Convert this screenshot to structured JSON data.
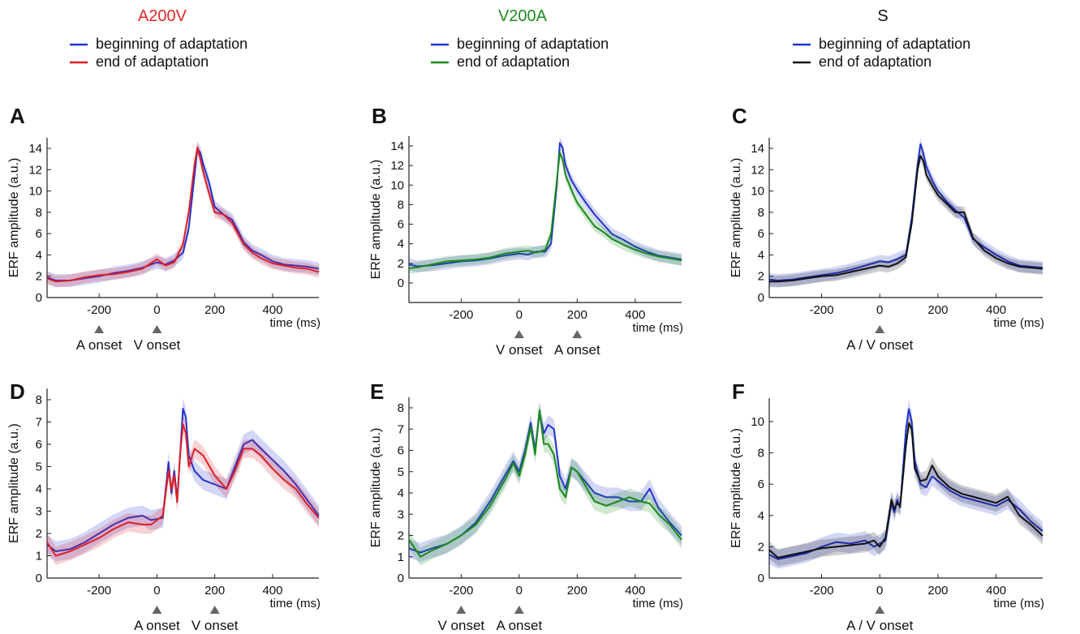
{
  "colors": {
    "beginning": "#2233cc",
    "a200v_end": "#dd1f26",
    "v200a_end": "#1a8a1a",
    "s_end": "#111111",
    "marker": "#666666"
  },
  "columns": [
    {
      "title": "A200V",
      "title_color": "#e4282a",
      "legend": [
        "beginning of adaptation",
        "end of adaptation"
      ]
    },
    {
      "title": "V200A",
      "title_color": "#1f8a1f",
      "legend": [
        "beginning of adaptation",
        "end of adaptation"
      ]
    },
    {
      "title": "S",
      "title_color": "#111111",
      "legend": [
        "beginning of adaptation",
        "end of adaptation"
      ]
    }
  ],
  "chart_data": [
    {
      "panel": "A",
      "type": "line",
      "ylabel": "ERF amplitude (a.u.)",
      "xlabel": "time (ms)",
      "xlim": [
        -380,
        560
      ],
      "ylim": [
        0,
        15
      ],
      "xticks": [
        -200,
        0,
        200,
        400
      ],
      "yticks": [
        0,
        2,
        4,
        6,
        8,
        10,
        12,
        14
      ],
      "onsets": [
        {
          "x": -200,
          "label": "A onset"
        },
        {
          "x": 0,
          "label": "V onset"
        }
      ],
      "series": [
        {
          "name": "beginning of adaptation",
          "color": "#2233cc",
          "x": [
            -380,
            -350,
            -300,
            -250,
            -200,
            -150,
            -100,
            -50,
            0,
            30,
            60,
            90,
            110,
            130,
            140,
            150,
            160,
            180,
            200,
            230,
            260,
            280,
            300,
            330,
            360,
            400,
            440,
            480,
            520,
            560
          ],
          "y": [
            1.9,
            1.6,
            1.6,
            1.8,
            2.0,
            2.3,
            2.5,
            2.8,
            3.3,
            3.1,
            3.5,
            4.2,
            6.5,
            11.5,
            14.0,
            13.6,
            12.5,
            10.8,
            8.5,
            7.8,
            7.3,
            6.3,
            5.2,
            4.4,
            4.0,
            3.4,
            3.1,
            3.0,
            2.9,
            2.7
          ]
        },
        {
          "name": "end of adaptation",
          "color": "#dd1f26",
          "x": [
            -380,
            -350,
            -300,
            -250,
            -200,
            -150,
            -100,
            -50,
            0,
            30,
            60,
            90,
            110,
            130,
            140,
            150,
            160,
            180,
            200,
            230,
            260,
            280,
            300,
            330,
            360,
            400,
            440,
            480,
            520,
            560
          ],
          "y": [
            1.8,
            1.5,
            1.6,
            1.9,
            2.1,
            2.2,
            2.4,
            2.7,
            3.6,
            3.0,
            3.3,
            5.0,
            8.0,
            12.5,
            14.1,
            13.0,
            11.8,
            9.8,
            8.0,
            7.8,
            7.0,
            6.0,
            5.0,
            4.2,
            3.7,
            3.2,
            3.0,
            2.8,
            2.7,
            2.4
          ]
        }
      ]
    },
    {
      "panel": "B",
      "type": "line",
      "ylabel": "ERF amplitude (a.u.)",
      "xlabel": "time (ms)",
      "xlim": [
        -380,
        560
      ],
      "ylim": [
        -2,
        15
      ],
      "xticks": [
        -200,
        0,
        200,
        400
      ],
      "yticks": [
        0,
        2,
        4,
        6,
        8,
        10,
        12,
        14
      ],
      "onsets": [
        {
          "x": 0,
          "label": "V onset"
        },
        {
          "x": 200,
          "label": "A onset"
        }
      ],
      "series": [
        {
          "name": "beginning of adaptation",
          "color": "#2233cc",
          "x": [
            -380,
            -350,
            -300,
            -250,
            -200,
            -150,
            -100,
            -50,
            0,
            30,
            60,
            90,
            110,
            130,
            140,
            150,
            160,
            180,
            200,
            230,
            260,
            290,
            320,
            360,
            400,
            440,
            480,
            520,
            560
          ],
          "y": [
            1.9,
            1.7,
            1.8,
            2.0,
            2.2,
            2.3,
            2.5,
            2.8,
            3.0,
            2.9,
            3.2,
            3.2,
            4.0,
            10.0,
            14.3,
            13.8,
            12.0,
            10.5,
            9.5,
            8.2,
            7.0,
            6.0,
            5.0,
            4.4,
            3.7,
            3.2,
            2.8,
            2.6,
            2.4
          ]
        },
        {
          "name": "end of adaptation",
          "color": "#1a8a1a",
          "x": [
            -380,
            -350,
            -300,
            -250,
            -200,
            -150,
            -100,
            -50,
            0,
            30,
            60,
            90,
            110,
            130,
            140,
            150,
            160,
            180,
            200,
            230,
            260,
            290,
            320,
            360,
            400,
            440,
            480,
            520,
            560
          ],
          "y": [
            1.5,
            1.6,
            1.9,
            2.2,
            2.3,
            2.4,
            2.6,
            3.0,
            3.2,
            3.3,
            3.1,
            3.4,
            5.0,
            10.5,
            13.3,
            12.6,
            11.0,
            9.5,
            8.2,
            7.0,
            5.8,
            5.2,
            4.5,
            3.9,
            3.4,
            3.0,
            2.7,
            2.5,
            2.3
          ]
        }
      ]
    },
    {
      "panel": "C",
      "type": "line",
      "ylabel": "ERF amplitude (a.u.)",
      "xlabel": "time (ms)",
      "xlim": [
        -380,
        560
      ],
      "ylim": [
        0,
        15
      ],
      "xticks": [
        -200,
        0,
        200,
        400
      ],
      "yticks": [
        0,
        2,
        4,
        6,
        8,
        10,
        12,
        14
      ],
      "onsets": [
        {
          "x": 0,
          "label": "A / V onset"
        }
      ],
      "series": [
        {
          "name": "beginning of adaptation",
          "color": "#2233cc",
          "x": [
            -380,
            -350,
            -300,
            -250,
            -200,
            -150,
            -100,
            -50,
            0,
            30,
            60,
            90,
            110,
            130,
            140,
            150,
            160,
            180,
            200,
            230,
            260,
            290,
            320,
            360,
            400,
            440,
            480,
            520,
            560
          ],
          "y": [
            1.7,
            1.6,
            1.7,
            1.9,
            2.1,
            2.3,
            2.6,
            3.0,
            3.4,
            3.3,
            3.6,
            4.0,
            7.5,
            12.5,
            14.4,
            13.5,
            12.3,
            11.0,
            10.0,
            9.0,
            8.2,
            7.5,
            5.5,
            4.7,
            4.0,
            3.4,
            3.0,
            2.9,
            2.8
          ]
        },
        {
          "name": "end of adaptation",
          "color": "#111111",
          "x": [
            -380,
            -350,
            -300,
            -250,
            -200,
            -150,
            -100,
            -50,
            0,
            30,
            60,
            90,
            110,
            130,
            140,
            150,
            160,
            180,
            200,
            230,
            260,
            290,
            320,
            360,
            400,
            440,
            480,
            520,
            560
          ],
          "y": [
            1.5,
            1.5,
            1.6,
            1.8,
            2.0,
            2.1,
            2.4,
            2.7,
            3.0,
            2.9,
            3.2,
            3.8,
            7.0,
            12.0,
            13.3,
            12.8,
            11.5,
            10.5,
            9.6,
            8.8,
            8.0,
            8.0,
            5.6,
            4.4,
            3.7,
            3.2,
            2.9,
            2.8,
            2.7
          ]
        }
      ]
    },
    {
      "panel": "D",
      "type": "line",
      "ylabel": "ERF amplitude (a.u.)",
      "xlabel": "time (ms)",
      "xlim": [
        -380,
        560
      ],
      "ylim": [
        0,
        8.5
      ],
      "xticks": [
        -200,
        0,
        200,
        400
      ],
      "yticks": [
        0,
        1,
        2,
        3,
        4,
        5,
        6,
        7,
        8
      ],
      "onsets": [
        {
          "x": 0,
          "label": "A onset"
        },
        {
          "x": 200,
          "label": "V onset"
        }
      ],
      "series": [
        {
          "name": "beginning of adaptation",
          "color": "#2233cc",
          "x": [
            -380,
            -350,
            -300,
            -250,
            -200,
            -150,
            -100,
            -50,
            -20,
            20,
            40,
            50,
            60,
            70,
            80,
            90,
            100,
            110,
            130,
            160,
            200,
            240,
            270,
            300,
            330,
            360,
            400,
            440,
            480,
            520,
            560
          ],
          "y": [
            1.5,
            1.2,
            1.3,
            1.6,
            2.0,
            2.4,
            2.7,
            2.8,
            2.6,
            2.7,
            5.2,
            3.8,
            4.8,
            3.5,
            5.5,
            7.6,
            7.2,
            5.5,
            4.8,
            4.4,
            4.2,
            4.0,
            5.0,
            6.0,
            6.2,
            5.8,
            5.3,
            4.8,
            4.2,
            3.5,
            2.8
          ]
        },
        {
          "name": "end of adaptation",
          "color": "#dd1f26",
          "x": [
            -380,
            -350,
            -300,
            -250,
            -200,
            -150,
            -100,
            -50,
            -20,
            20,
            40,
            50,
            60,
            70,
            80,
            90,
            100,
            110,
            130,
            160,
            200,
            240,
            270,
            300,
            330,
            360,
            400,
            440,
            480,
            520,
            560
          ],
          "y": [
            1.6,
            1.0,
            1.2,
            1.5,
            1.8,
            2.2,
            2.5,
            2.4,
            2.4,
            2.8,
            4.8,
            4.0,
            4.6,
            3.4,
            5.5,
            6.9,
            6.5,
            5.0,
            5.8,
            5.5,
            4.6,
            4.0,
            4.8,
            5.8,
            5.8,
            5.5,
            4.9,
            4.4,
            4.0,
            3.3,
            2.7
          ]
        }
      ]
    },
    {
      "panel": "E",
      "type": "line",
      "ylabel": "ERF amplitude (a.u.)",
      "xlabel": "time (ms)",
      "xlim": [
        -380,
        560
      ],
      "ylim": [
        0,
        8.5
      ],
      "xticks": [
        -200,
        0,
        200,
        400
      ],
      "yticks": [
        0,
        1,
        2,
        3,
        4,
        5,
        6,
        7,
        8
      ],
      "onsets": [
        {
          "x": -200,
          "label": "V onset"
        },
        {
          "x": 0,
          "label": "A onset"
        }
      ],
      "series": [
        {
          "name": "beginning of adaptation",
          "color": "#2233cc",
          "x": [
            -380,
            -340,
            -300,
            -250,
            -200,
            -150,
            -100,
            -50,
            -20,
            0,
            20,
            40,
            55,
            70,
            85,
            100,
            120,
            140,
            160,
            180,
            200,
            230,
            260,
            300,
            340,
            380,
            420,
            450,
            480,
            520,
            560
          ],
          "y": [
            1.4,
            1.2,
            1.4,
            1.6,
            2.0,
            2.6,
            3.6,
            4.8,
            5.5,
            5.0,
            6.0,
            7.3,
            6.0,
            7.8,
            6.8,
            7.2,
            7.0,
            4.8,
            4.2,
            5.2,
            5.0,
            4.5,
            4.0,
            3.8,
            3.8,
            3.6,
            3.6,
            4.2,
            3.3,
            2.6,
            2.0
          ]
        },
        {
          "name": "end of adaptation",
          "color": "#1a8a1a",
          "x": [
            -380,
            -340,
            -300,
            -250,
            -200,
            -150,
            -100,
            -50,
            -20,
            0,
            20,
            40,
            55,
            70,
            85,
            100,
            120,
            140,
            160,
            180,
            200,
            230,
            260,
            300,
            340,
            380,
            420,
            450,
            480,
            520,
            560
          ],
          "y": [
            1.8,
            1.0,
            1.3,
            1.6,
            2.0,
            2.5,
            3.4,
            4.6,
            5.4,
            4.8,
            5.8,
            7.1,
            5.8,
            7.9,
            6.3,
            6.3,
            5.8,
            4.2,
            3.8,
            5.2,
            5.0,
            4.3,
            3.6,
            3.4,
            3.6,
            3.8,
            3.6,
            3.5,
            3.0,
            2.5,
            1.8
          ]
        }
      ]
    },
    {
      "panel": "F",
      "type": "line",
      "ylabel": "ERF amplitude (a.u.)",
      "xlabel": "time (ms)",
      "xlim": [
        -380,
        560
      ],
      "ylim": [
        0,
        11.5
      ],
      "xticks": [
        -200,
        0,
        200,
        400
      ],
      "yticks": [
        0,
        2,
        4,
        6,
        8,
        10
      ],
      "onsets": [
        {
          "x": 0,
          "label": "A / V onset"
        }
      ],
      "series": [
        {
          "name": "beginning of adaptation",
          "color": "#2233cc",
          "x": [
            -380,
            -350,
            -300,
            -250,
            -200,
            -150,
            -100,
            -50,
            -20,
            0,
            20,
            40,
            50,
            60,
            70,
            80,
            90,
            100,
            110,
            120,
            140,
            160,
            180,
            200,
            240,
            280,
            320,
            360,
            400,
            440,
            480,
            520,
            560
          ],
          "y": [
            1.5,
            1.2,
            1.4,
            1.6,
            2.0,
            2.3,
            2.2,
            2.4,
            2.0,
            2.2,
            2.4,
            4.8,
            4.2,
            5.0,
            4.5,
            7.0,
            9.5,
            10.8,
            10.0,
            7.5,
            6.0,
            5.8,
            6.5,
            6.2,
            5.6,
            5.2,
            5.0,
            4.8,
            4.6,
            5.0,
            4.4,
            3.6,
            3.0
          ]
        },
        {
          "name": "end of adaptation",
          "color": "#111111",
          "x": [
            -380,
            -350,
            -300,
            -250,
            -200,
            -150,
            -100,
            -50,
            -20,
            0,
            20,
            40,
            50,
            60,
            70,
            80,
            90,
            100,
            110,
            120,
            140,
            160,
            180,
            200,
            240,
            280,
            320,
            360,
            400,
            440,
            480,
            520,
            560
          ],
          "y": [
            1.8,
            1.3,
            1.5,
            1.7,
            1.9,
            2.0,
            2.1,
            2.2,
            2.4,
            2.0,
            2.6,
            5.0,
            4.4,
            4.8,
            4.6,
            6.5,
            8.5,
            9.9,
            9.5,
            7.0,
            6.2,
            6.3,
            7.2,
            6.5,
            5.8,
            5.4,
            5.2,
            5.0,
            4.8,
            5.2,
            4.0,
            3.4,
            2.7
          ]
        }
      ]
    }
  ]
}
